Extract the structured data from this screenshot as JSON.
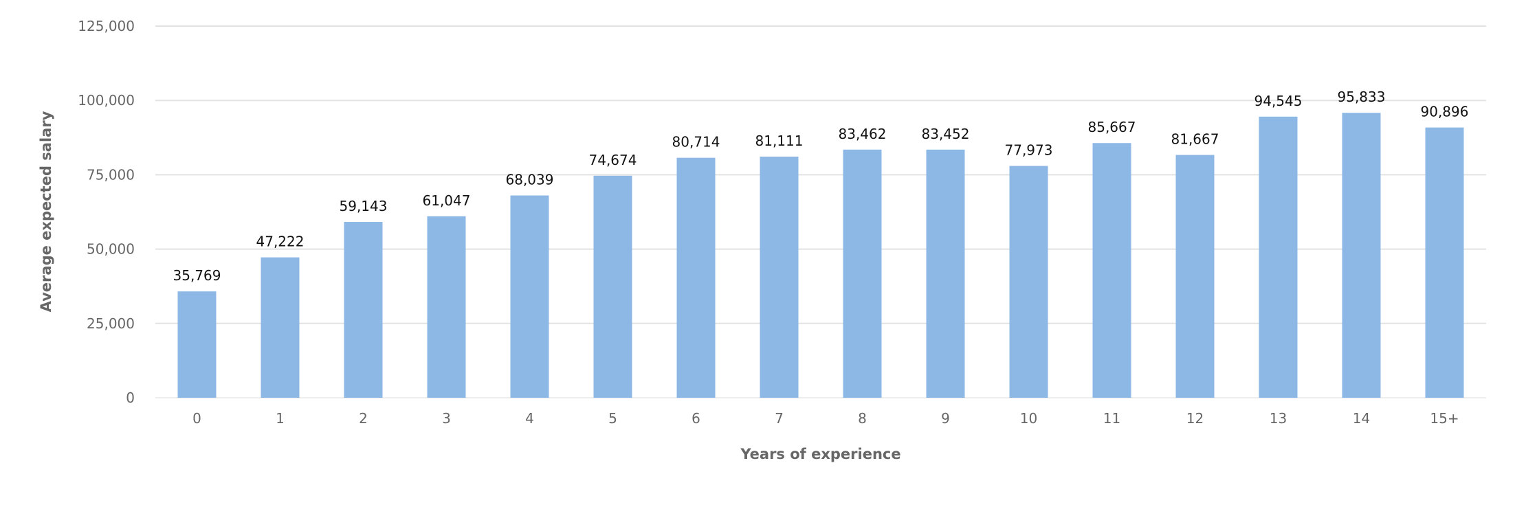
{
  "chart_data": {
    "type": "bar",
    "categories": [
      "0",
      "1",
      "2",
      "3",
      "4",
      "5",
      "6",
      "7",
      "8",
      "9",
      "10",
      "11",
      "12",
      "13",
      "14",
      "15+"
    ],
    "values": [
      35769,
      47222,
      59143,
      61047,
      68039,
      74674,
      80714,
      81111,
      83462,
      83452,
      77973,
      85667,
      81667,
      94545,
      95833,
      90896
    ],
    "data_labels": [
      "35,769",
      "47,222",
      "59,143",
      "61,047",
      "68,039",
      "74,674",
      "80,714",
      "81,111",
      "83,462",
      "83,452",
      "77,973",
      "85,667",
      "81,667",
      "94,545",
      "95,833",
      "90,896"
    ],
    "xlabel": "Years of experience",
    "ylabel": "Average expected salary",
    "ylim": [
      0,
      125000
    ],
    "yticks": [
      "0",
      "25,000",
      "50,000",
      "75,000",
      "100,000",
      "125,000"
    ],
    "grid": true,
    "bar_color": "#8db8e6"
  }
}
